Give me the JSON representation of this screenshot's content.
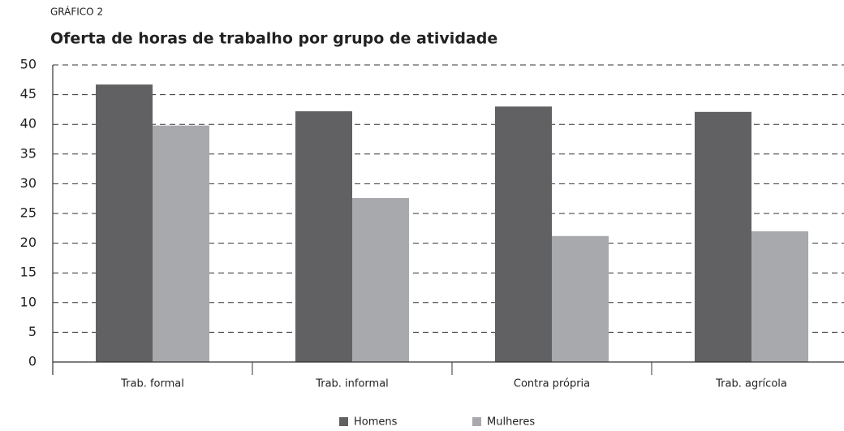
{
  "chart_data": {
    "type": "bar",
    "label": "GRÁFICO 2",
    "title": "Oferta de horas de trabalho por grupo de atividade",
    "categories": [
      "Trab. formal",
      "Trab. informal",
      "Contra própria",
      "Trab. agrícola"
    ],
    "series": [
      {
        "name": "Homens",
        "color": "#616163",
        "values": [
          46.7,
          42.2,
          43.0,
          42.1
        ]
      },
      {
        "name": "Mulheres",
        "color": "#a8a9ac",
        "values": [
          39.8,
          27.6,
          21.2,
          22.0
        ]
      }
    ],
    "ylim": [
      0,
      50
    ],
    "yticks": [
      0,
      5,
      10,
      15,
      20,
      25,
      30,
      35,
      40,
      45,
      50
    ],
    "grid": true,
    "legend": "bottom"
  }
}
